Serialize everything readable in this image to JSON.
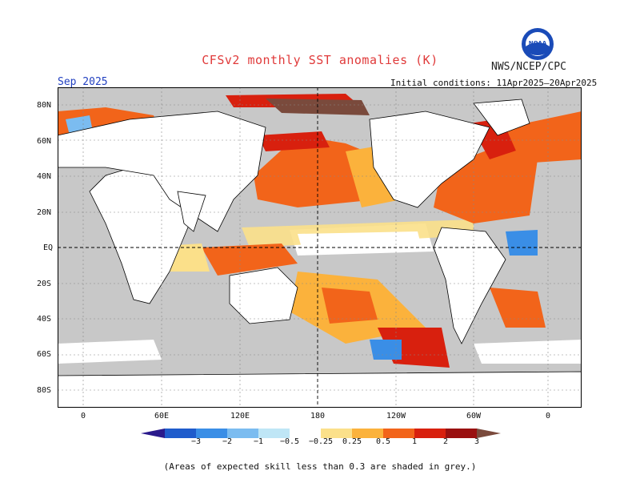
{
  "title": "CFSv2 monthly SST anomalies (K)",
  "agency": "NWS/NCEP/CPC",
  "logo_text": "NOAA",
  "valid_month": "Sep 2025",
  "initial_conditions": "Initial conditions: 11Apr2025–20Apr2025",
  "footnote": "(Areas of expected skill less than 0.3 are shaded in grey.)",
  "lat_labels": [
    "80N",
    "60N",
    "40N",
    "20N",
    "EQ",
    "20S",
    "40S",
    "60S",
    "80S"
  ],
  "lon_labels": [
    "0",
    "60E",
    "120E",
    "180",
    "120W",
    "60W",
    "0"
  ],
  "colorbar": {
    "labels": [
      "−3",
      "−2",
      "−1",
      "−0.5",
      "−0.25",
      "0.25",
      "0.5",
      "1",
      "2",
      "3"
    ],
    "colors": [
      "#2a1a8c",
      "#1f5ccc",
      "#3a8ee6",
      "#7bbcf0",
      "#bfe6f6",
      "#ffffff",
      "#fbe08a",
      "#fbb23c",
      "#f2641a",
      "#d8200e",
      "#9a1010",
      "#7a4a3c"
    ]
  },
  "colors": {
    "land": "#ffffff",
    "low_skill_grey": "#c8c8c8",
    "title_red": "#e03a3a",
    "date_blue": "#2240c0"
  }
}
